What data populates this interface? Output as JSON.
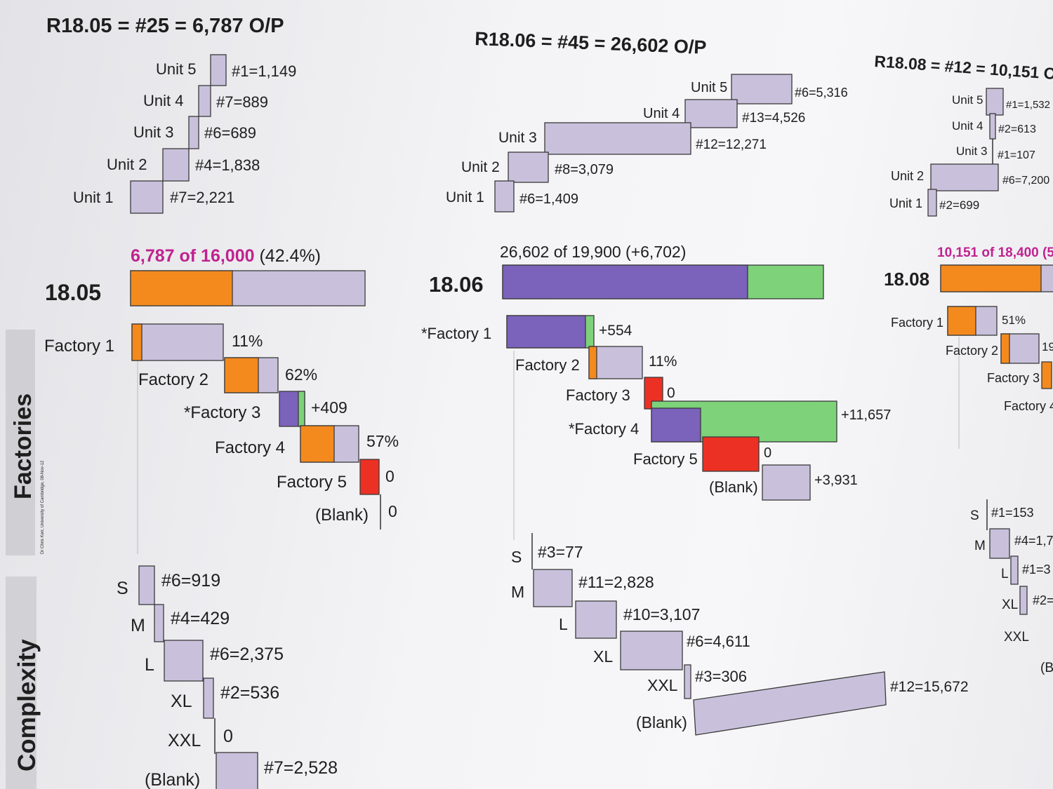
{
  "colors": {
    "lavender": "#c9c1dc",
    "orange": "#f48a1e",
    "purple": "#7b62ba",
    "green": "#7dd27a",
    "red": "#ec3124",
    "pink": "#c0228f"
  },
  "side_labels": {
    "factories": "Factories",
    "complexity": "Complexity",
    "credit": "Dr Chris Kerr, University of Cambridge, 08-Nov-12"
  },
  "panels": [
    {
      "title": "R18.05 = #25 = 6,787 O/P",
      "units": [
        {
          "label": "Unit 5",
          "value": "#1=1,149"
        },
        {
          "label": "Unit 4",
          "value": "#7=889"
        },
        {
          "label": "Unit 3",
          "value": "#6=689"
        },
        {
          "label": "Unit 2",
          "value": "#4=1,838"
        },
        {
          "label": "Unit 1",
          "value": "#7=2,221"
        }
      ],
      "summary": {
        "pink": "6,787 of 16,000",
        "rest": " (42.4%)"
      },
      "code": "18.05",
      "factories": [
        {
          "label": "Factory 1",
          "value": "11%"
        },
        {
          "label": "Factory 2",
          "value": "62%"
        },
        {
          "label": "*Factory 3",
          "value": "+409"
        },
        {
          "label": "Factory 4",
          "value": "57%"
        },
        {
          "label": "Factory 5",
          "value": "0"
        },
        {
          "label": "(Blank)",
          "value": "0"
        }
      ],
      "complexity": [
        {
          "label": "S",
          "value": "#6=919"
        },
        {
          "label": "M",
          "value": "#4=429"
        },
        {
          "label": "L",
          "value": "#6=2,375"
        },
        {
          "label": "XL",
          "value": "#2=536"
        },
        {
          "label": "XXL",
          "value": "0"
        },
        {
          "label": "(Blank)",
          "value": "#7=2,528"
        }
      ]
    },
    {
      "title": "R18.06 = #45 = 26,602 O/P",
      "units": [
        {
          "label": "Unit 5",
          "value": "#6=5,316"
        },
        {
          "label": "Unit 4",
          "value": "#13=4,526"
        },
        {
          "label": "Unit 3",
          "value": "#12=12,271"
        },
        {
          "label": "Unit 2",
          "value": "#8=3,079"
        },
        {
          "label": "Unit 1",
          "value": "#6=1,409"
        }
      ],
      "summary": {
        "pink": "",
        "rest": "26,602 of 19,900 (+6,702)"
      },
      "code": "18.06",
      "factories": [
        {
          "label": "*Factory 1",
          "value": "+554"
        },
        {
          "label": "Factory 2",
          "value": "11%"
        },
        {
          "label": "Factory 3",
          "value": "0"
        },
        {
          "label": "*Factory 4",
          "value": "+11,657"
        },
        {
          "label": "Factory 5",
          "value": "0"
        },
        {
          "label": "(Blank)",
          "value": "+3,931"
        }
      ],
      "complexity": [
        {
          "label": "S",
          "value": "#3=77"
        },
        {
          "label": "M",
          "value": "#11=2,828"
        },
        {
          "label": "L",
          "value": "#10=3,107"
        },
        {
          "label": "XL",
          "value": "#6=4,611"
        },
        {
          "label": "XXL",
          "value": "#3=306"
        },
        {
          "label": "(Blank)",
          "value": "#12=15,672"
        }
      ]
    },
    {
      "title": "R18.08 = #12 = 10,151 O",
      "units": [
        {
          "label": "Unit 5",
          "value": "#1=1,532"
        },
        {
          "label": "Unit 4",
          "value": "#2=613"
        },
        {
          "label": "Unit 3",
          "value": "#1=107"
        },
        {
          "label": "Unit 2",
          "value": "#6=7,200"
        },
        {
          "label": "Unit 1",
          "value": "#2=699"
        }
      ],
      "summary": {
        "pink": "10,151 of 18,400 (5",
        "rest": ""
      },
      "code": "18.08",
      "factories": [
        {
          "label": "Factory 1",
          "value": "51%"
        },
        {
          "label": "Factory 2",
          "value": "19"
        },
        {
          "label": "Factory 3",
          "value": ""
        },
        {
          "label": "Factory 4",
          "value": ""
        }
      ],
      "complexity": [
        {
          "label": "S",
          "value": "#1=153"
        },
        {
          "label": "M",
          "value": "#4=1,7"
        },
        {
          "label": "L",
          "value": "#1=3"
        },
        {
          "label": "XL",
          "value": "#2="
        },
        {
          "label": "XXL",
          "value": ""
        },
        {
          "label": "(B",
          "value": ""
        }
      ]
    }
  ]
}
